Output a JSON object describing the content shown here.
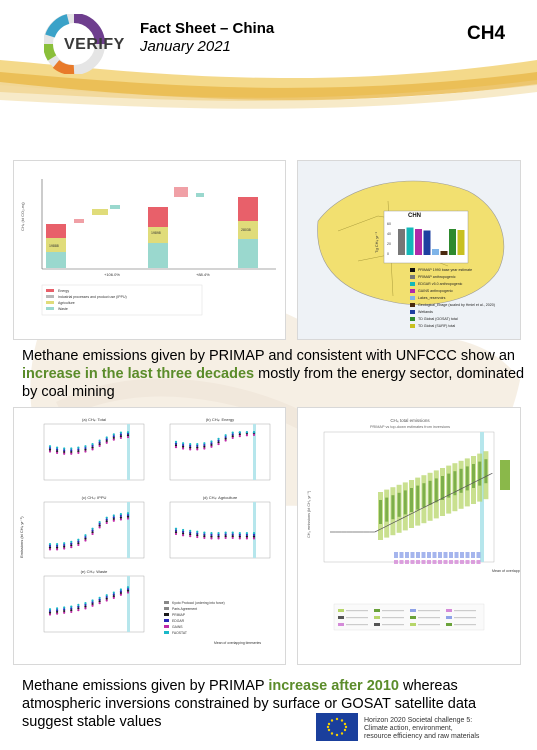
{
  "header": {
    "logo_text": "VERIFY",
    "title": "Fact Sheet – China",
    "subtitle": "January 2021",
    "gas_code": "CH4"
  },
  "panel1": {
    "bar_labels": [
      "19888",
      "19898",
      "27106",
      "28038"
    ],
    "legend": [
      "Energy",
      "Industrial processes and product use (IPPU)",
      "Agriculture",
      "Waste"
    ],
    "legend_colors": [
      "#e8606a",
      "#b8b8b8",
      "#e0dc7a",
      "#9ad8ce"
    ],
    "changes": [
      "+106.0%",
      "+88.4%"
    ]
  },
  "panel2": {
    "country_label": "CHN",
    "ylabel": "Tg CH₄ yr⁻¹",
    "yticks": [
      "60",
      "40",
      "20",
      "0"
    ],
    "legend": [
      "PRIMAP 1990 base year estimate",
      "PRIMAP anthropogenic",
      "EDGAR v5.0 anthropogenic",
      "GAINS anthropogenic",
      "Lakes_reservoirs",
      "Geological_Ebage (scaled by Hmiel et al., 2020)",
      "Wetlands",
      "TD Global (GOSAT) total",
      "TD Global (SURF) total"
    ],
    "legend_colors": [
      "#111111",
      "#777777",
      "#14b8b8",
      "#b02aa8",
      "#7fb4e8",
      "#4a2a10",
      "#1e3fa0",
      "#2e8a2e",
      "#c8c020"
    ],
    "bar_values": [
      52,
      55,
      52,
      49,
      12,
      8,
      52,
      50
    ]
  },
  "panel3": {
    "subplot_titles": [
      "(a) CH₄: Total",
      "(b) CH₄: Energy",
      "(c) CH₄: IPPU",
      "(d) CH₄: Agriculture",
      "(e) CH₄: Waste"
    ],
    "ylabel": "Emissions (kt CH₄ yr⁻¹)",
    "legend": [
      "Kyoto Protocol (ordering into force)",
      "Paris Agreement",
      "PRIMAP",
      "EDGAR",
      "GAINS",
      "FAOSTAT"
    ],
    "xlabel": "Mean of overlapping timeseries",
    "colors": {
      "primap": "#1a1a1a",
      "edgar": "#2a2ab8",
      "gains": "#c02aa8",
      "faostat": "#1ab8c8"
    }
  },
  "panel4": {
    "title": "CH₄ total emissions",
    "subtitle": "PRIMAP vs top-down estimates from inversions",
    "ylabel": "CH₄ emissions (kt CH₄ yr⁻¹)",
    "xlabel": "Mean of overlapping timeseries"
  },
  "captions": {
    "c1_pre": "Methane emissions given by PRIMAP and consistent with UNFCCC show an ",
    "c1_hl": "increase in the last three decades",
    "c1_post": " mostly from the energy sector, dominated by coal mining",
    "c2_pre": "Methane emissions given by PRIMAP ",
    "c2_hl": "increase after 2010",
    "c2_post": " whereas atmospheric inversions constrained by surface or GOSAT satellite data suggest stable values"
  },
  "footer": {
    "h2020_line1": "Horizon 2020 Societal challenge 5:",
    "h2020_line2": "Climate action, environment,",
    "h2020_line3": "resource efficiency and raw materials"
  }
}
